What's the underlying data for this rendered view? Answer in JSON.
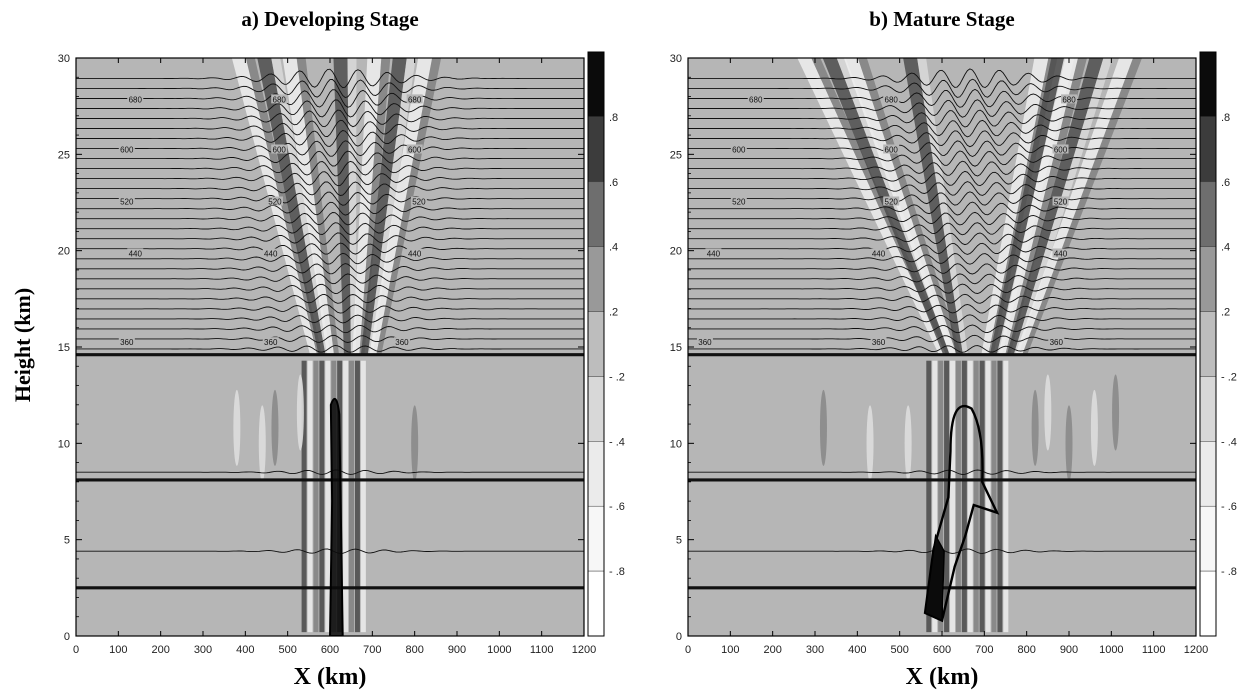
{
  "ylabel": "Height (km)",
  "colorbar": {
    "labels": [
      ".8",
      ".6",
      ".4",
      ".2",
      "- .2",
      "- .4",
      "- .6",
      "- .8"
    ],
    "fills": [
      "#0b0b0b",
      "#3c3c3c",
      "#6e6e6e",
      "#999999",
      "#bdbdbd",
      "#d8d8d8",
      "#ebebeb",
      "#f7f7f7",
      "#ffffff"
    ]
  },
  "colors": {
    "background_field": "#b6b6b6",
    "contour": "#111111"
  },
  "chart_data": [
    {
      "type": "heatmap",
      "title": "a) Developing Stage",
      "xlabel": "X  (km)",
      "xlim": [
        0,
        1200
      ],
      "ylim": [
        0,
        30
      ],
      "xticks": [
        0,
        100,
        200,
        300,
        400,
        500,
        600,
        700,
        800,
        900,
        1000,
        1100,
        1200
      ],
      "yticks": [
        0,
        5,
        10,
        15,
        20,
        25,
        30
      ],
      "layer_boundaries_km": [
        2.5,
        8.1,
        14.6
      ],
      "contour_labels": [
        {
          "text": "680",
          "x": 140,
          "y": 27.8
        },
        {
          "text": "680",
          "x": 480,
          "y": 27.8
        },
        {
          "text": "680",
          "x": 800,
          "y": 27.8
        },
        {
          "text": "600",
          "x": 120,
          "y": 25.2
        },
        {
          "text": "600",
          "x": 480,
          "y": 25.2
        },
        {
          "text": "600",
          "x": 800,
          "y": 25.2
        },
        {
          "text": "520",
          "x": 120,
          "y": 22.5
        },
        {
          "text": "520",
          "x": 470,
          "y": 22.5
        },
        {
          "text": "520",
          "x": 810,
          "y": 22.5
        },
        {
          "text": "440",
          "x": 140,
          "y": 19.8
        },
        {
          "text": "440",
          "x": 460,
          "y": 19.8
        },
        {
          "text": "440",
          "x": 800,
          "y": 19.8
        },
        {
          "text": "360",
          "x": 120,
          "y": 15.2
        },
        {
          "text": "360",
          "x": 460,
          "y": 15.2
        },
        {
          "text": "360",
          "x": 770,
          "y": 15.2
        }
      ],
      "cloud_x_range_km": [
        600,
        630
      ]
    },
    {
      "type": "heatmap",
      "title": "b) Mature Stage",
      "xlabel": "X  (km)",
      "xlim": [
        0,
        1200
      ],
      "ylim": [
        0,
        30
      ],
      "xticks": [
        0,
        100,
        200,
        300,
        400,
        500,
        600,
        700,
        800,
        900,
        1000,
        1100,
        1200
      ],
      "yticks": [
        0,
        5,
        10,
        15,
        20,
        25,
        30
      ],
      "layer_boundaries_km": [
        2.5,
        8.1,
        14.6
      ],
      "contour_labels": [
        {
          "text": "680",
          "x": 160,
          "y": 27.8
        },
        {
          "text": "680",
          "x": 480,
          "y": 27.8
        },
        {
          "text": "680",
          "x": 900,
          "y": 27.8
        },
        {
          "text": "600",
          "x": 120,
          "y": 25.2
        },
        {
          "text": "600",
          "x": 480,
          "y": 25.2
        },
        {
          "text": "600",
          "x": 880,
          "y": 25.2
        },
        {
          "text": "520",
          "x": 120,
          "y": 22.5
        },
        {
          "text": "520",
          "x": 480,
          "y": 22.5
        },
        {
          "text": "520",
          "x": 880,
          "y": 22.5
        },
        {
          "text": "440",
          "x": 60,
          "y": 19.8
        },
        {
          "text": "440",
          "x": 450,
          "y": 19.8
        },
        {
          "text": "440",
          "x": 880,
          "y": 19.8
        },
        {
          "text": "360",
          "x": 40,
          "y": 15.2
        },
        {
          "text": "360",
          "x": 450,
          "y": 15.2
        },
        {
          "text": "360",
          "x": 870,
          "y": 15.2
        }
      ],
      "cloud_x_range_km": [
        560,
        730
      ]
    }
  ]
}
